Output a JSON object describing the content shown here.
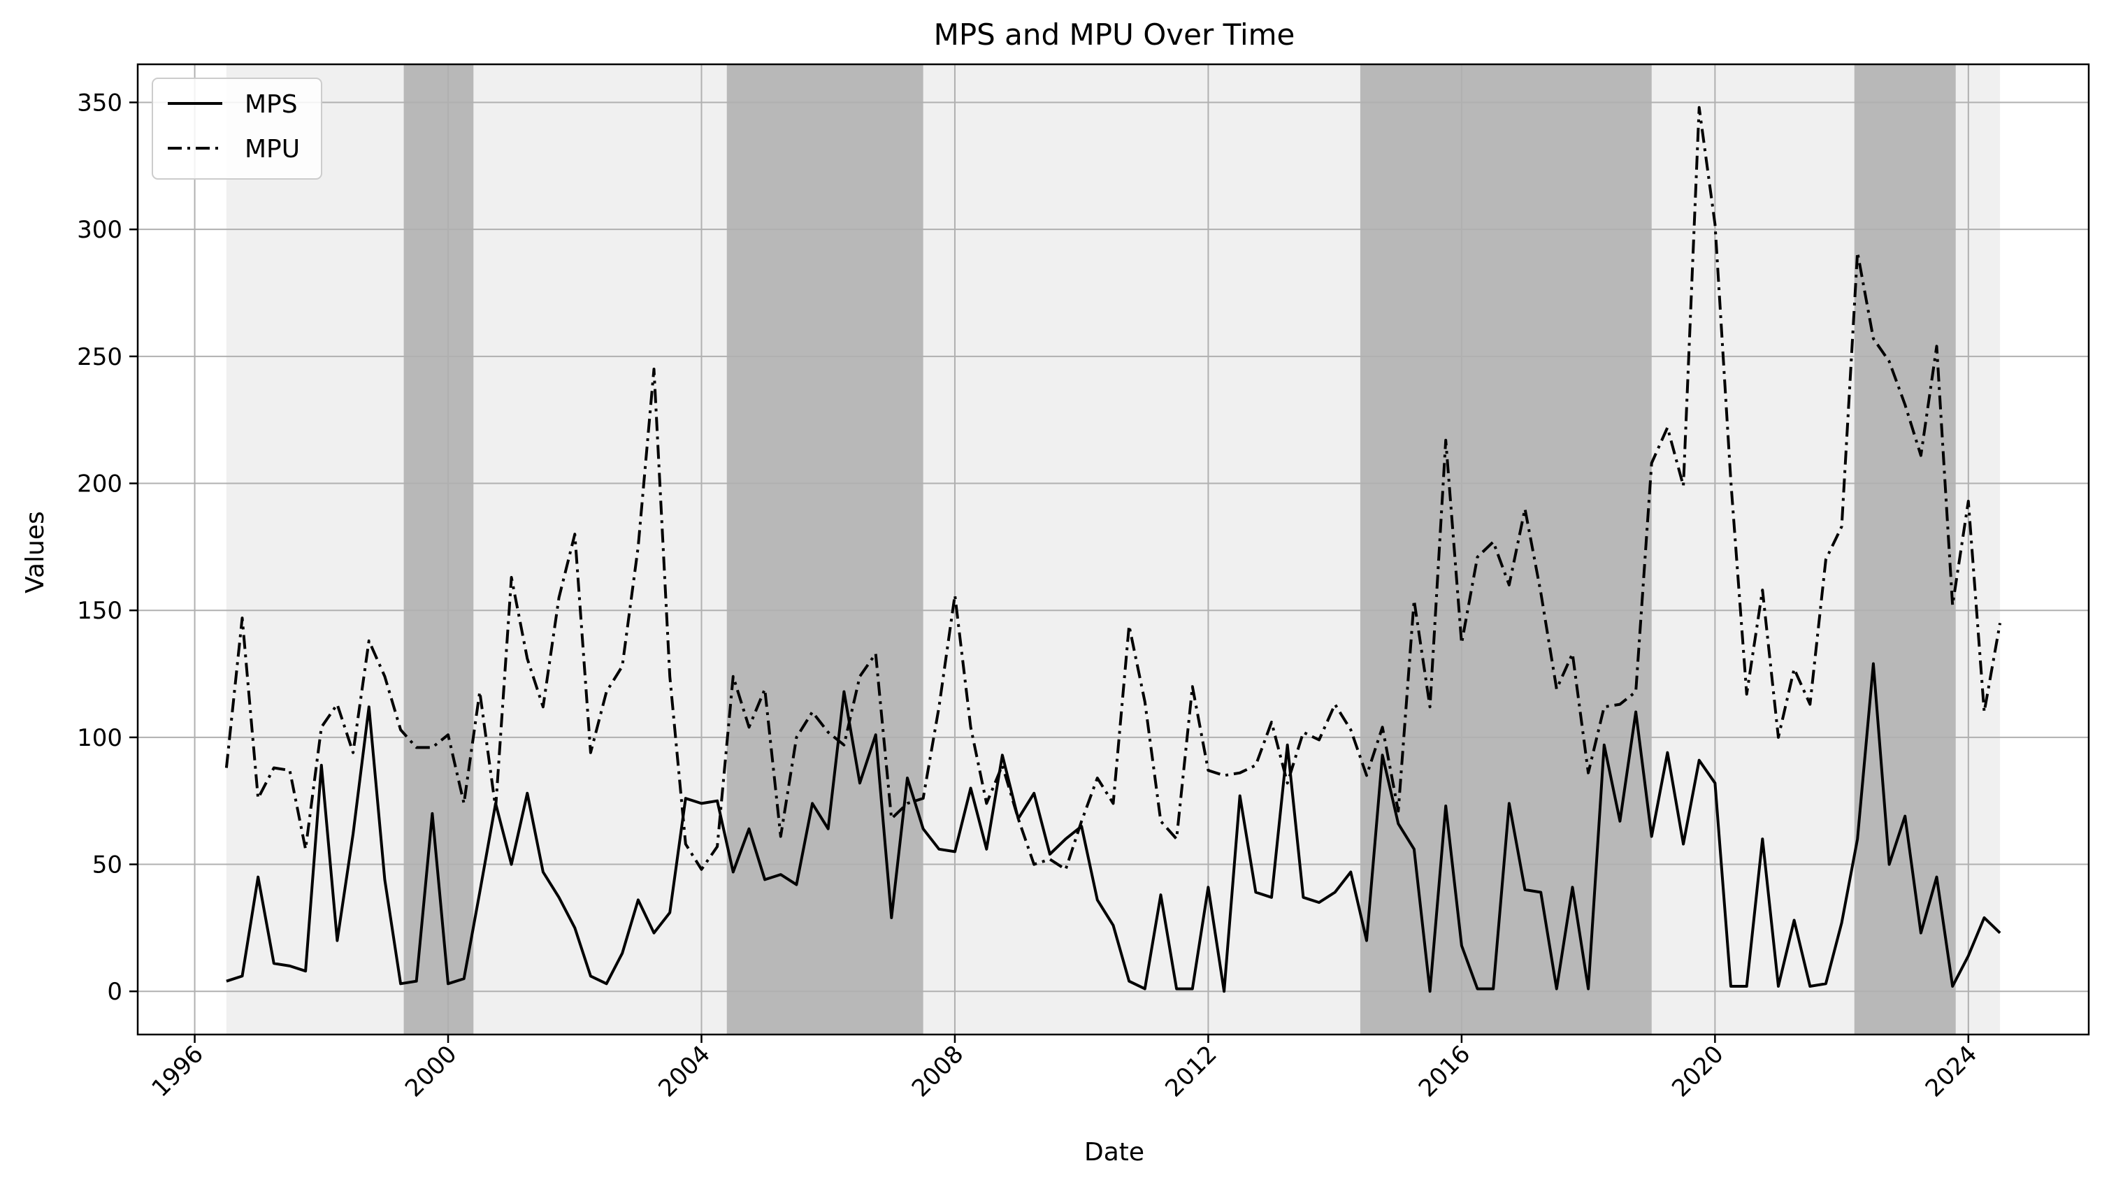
{
  "chart_data": {
    "type": "line",
    "title": "MPS and MPU Over Time",
    "xlabel": "Date",
    "ylabel": "Values",
    "xlim": [
      1995.1,
      2025.9
    ],
    "ylim": [
      -17,
      365
    ],
    "grid": true,
    "legend_position": "top-left",
    "x_ticks": [
      1996,
      2000,
      2004,
      2008,
      2012,
      2016,
      2020,
      2024
    ],
    "y_ticks": [
      0,
      50,
      100,
      150,
      200,
      250,
      300,
      350
    ],
    "background_band": [
      1996.5,
      2024.5
    ],
    "shaded_regions": [
      [
        1999.3,
        2000.4
      ],
      [
        2004.4,
        2007.5
      ],
      [
        2014.4,
        2019.0
      ],
      [
        2022.2,
        2023.8
      ]
    ],
    "colors": {
      "line": "#000000",
      "band_light": "#f0f0f0",
      "band_dark": "#b8b8b8",
      "grid": "#b0b0b0"
    },
    "series": [
      {
        "name": "MPS",
        "style": "solid",
        "points": [
          [
            1996.5,
            4
          ],
          [
            1996.75,
            6
          ],
          [
            1997.0,
            45
          ],
          [
            1997.25,
            11
          ],
          [
            1997.5,
            10
          ],
          [
            1997.75,
            8
          ],
          [
            1998.0,
            89
          ],
          [
            1998.25,
            20
          ],
          [
            1998.5,
            62
          ],
          [
            1998.75,
            112
          ],
          [
            1999.0,
            44
          ],
          [
            1999.25,
            3
          ],
          [
            1999.5,
            4
          ],
          [
            1999.75,
            70
          ],
          [
            2000.0,
            3
          ],
          [
            2000.25,
            5
          ],
          [
            2000.5,
            39
          ],
          [
            2000.75,
            74
          ],
          [
            2001.0,
            50
          ],
          [
            2001.25,
            78
          ],
          [
            2001.5,
            47
          ],
          [
            2001.75,
            37
          ],
          [
            2002.0,
            25
          ],
          [
            2002.25,
            6
          ],
          [
            2002.5,
            3
          ],
          [
            2002.75,
            15
          ],
          [
            2003.0,
            36
          ],
          [
            2003.25,
            23
          ],
          [
            2003.5,
            31
          ],
          [
            2003.75,
            76
          ],
          [
            2004.0,
            74
          ],
          [
            2004.25,
            75
          ],
          [
            2004.5,
            47
          ],
          [
            2004.75,
            64
          ],
          [
            2005.0,
            44
          ],
          [
            2005.25,
            46
          ],
          [
            2005.5,
            42
          ],
          [
            2005.75,
            74
          ],
          [
            2006.0,
            64
          ],
          [
            2006.25,
            118
          ],
          [
            2006.5,
            82
          ],
          [
            2006.75,
            101
          ],
          [
            2007.0,
            29
          ],
          [
            2007.25,
            84
          ],
          [
            2007.5,
            64
          ],
          [
            2007.75,
            56
          ],
          [
            2008.0,
            55
          ],
          [
            2008.25,
            80
          ],
          [
            2008.5,
            56
          ],
          [
            2008.75,
            93
          ],
          [
            2009.0,
            68
          ],
          [
            2009.25,
            78
          ],
          [
            2009.5,
            54
          ],
          [
            2009.75,
            60
          ],
          [
            2010.0,
            65
          ],
          [
            2010.25,
            36
          ],
          [
            2010.5,
            26
          ],
          [
            2010.75,
            4
          ],
          [
            2011.0,
            1
          ],
          [
            2011.25,
            38
          ],
          [
            2011.5,
            1
          ],
          [
            2011.75,
            1
          ],
          [
            2012.0,
            41
          ],
          [
            2012.25,
            0
          ],
          [
            2012.5,
            77
          ],
          [
            2012.75,
            39
          ],
          [
            2013.0,
            37
          ],
          [
            2013.25,
            97
          ],
          [
            2013.5,
            37
          ],
          [
            2013.75,
            35
          ],
          [
            2014.0,
            39
          ],
          [
            2014.25,
            47
          ],
          [
            2014.5,
            20
          ],
          [
            2014.75,
            93
          ],
          [
            2015.0,
            66
          ],
          [
            2015.25,
            56
          ],
          [
            2015.5,
            0
          ],
          [
            2015.75,
            73
          ],
          [
            2016.0,
            18
          ],
          [
            2016.25,
            1
          ],
          [
            2016.5,
            1
          ],
          [
            2016.75,
            74
          ],
          [
            2017.0,
            40
          ],
          [
            2017.25,
            39
          ],
          [
            2017.5,
            1
          ],
          [
            2017.75,
            41
          ],
          [
            2018.0,
            1
          ],
          [
            2018.25,
            97
          ],
          [
            2018.5,
            67
          ],
          [
            2018.75,
            110
          ],
          [
            2019.0,
            61
          ],
          [
            2019.25,
            94
          ],
          [
            2019.5,
            58
          ],
          [
            2019.75,
            91
          ],
          [
            2020.0,
            82
          ],
          [
            2020.25,
            2
          ],
          [
            2020.5,
            2
          ],
          [
            2020.75,
            60
          ],
          [
            2021.0,
            2
          ],
          [
            2021.25,
            28
          ],
          [
            2021.5,
            2
          ],
          [
            2021.75,
            3
          ],
          [
            2022.0,
            27
          ],
          [
            2022.25,
            60
          ],
          [
            2022.5,
            129
          ],
          [
            2022.75,
            50
          ],
          [
            2023.0,
            69
          ],
          [
            2023.25,
            23
          ],
          [
            2023.5,
            45
          ],
          [
            2023.75,
            2
          ],
          [
            2024.0,
            14
          ],
          [
            2024.25,
            29
          ],
          [
            2024.5,
            23
          ]
        ]
      },
      {
        "name": "MPU",
        "style": "dashdot",
        "points": [
          [
            1996.5,
            88
          ],
          [
            1996.75,
            147
          ],
          [
            1997.0,
            76
          ],
          [
            1997.25,
            88
          ],
          [
            1997.5,
            87
          ],
          [
            1997.75,
            56
          ],
          [
            1998.0,
            104
          ],
          [
            1998.25,
            113
          ],
          [
            1998.5,
            94
          ],
          [
            1998.75,
            138
          ],
          [
            1999.0,
            124
          ],
          [
            1999.25,
            103
          ],
          [
            1999.5,
            96
          ],
          [
            1999.75,
            96
          ],
          [
            2000.0,
            101
          ],
          [
            2000.25,
            74
          ],
          [
            2000.5,
            118
          ],
          [
            2000.75,
            72
          ],
          [
            2001.0,
            163
          ],
          [
            2001.25,
            131
          ],
          [
            2001.5,
            112
          ],
          [
            2001.75,
            155
          ],
          [
            2002.0,
            180
          ],
          [
            2002.25,
            94
          ],
          [
            2002.5,
            118
          ],
          [
            2002.75,
            128
          ],
          [
            2003.0,
            175
          ],
          [
            2003.25,
            245
          ],
          [
            2003.5,
            124
          ],
          [
            2003.75,
            58
          ],
          [
            2004.0,
            48
          ],
          [
            2004.25,
            57
          ],
          [
            2004.5,
            124
          ],
          [
            2004.75,
            104
          ],
          [
            2005.0,
            119
          ],
          [
            2005.25,
            61
          ],
          [
            2005.5,
            100
          ],
          [
            2005.75,
            110
          ],
          [
            2006.0,
            102
          ],
          [
            2006.25,
            97
          ],
          [
            2006.5,
            124
          ],
          [
            2006.75,
            133
          ],
          [
            2007.0,
            68
          ],
          [
            2007.25,
            74
          ],
          [
            2007.5,
            76
          ],
          [
            2007.75,
            112
          ],
          [
            2008.0,
            156
          ],
          [
            2008.25,
            104
          ],
          [
            2008.5,
            74
          ],
          [
            2008.75,
            89
          ],
          [
            2009.0,
            68
          ],
          [
            2009.25,
            50
          ],
          [
            2009.5,
            52
          ],
          [
            2009.75,
            48
          ],
          [
            2010.0,
            67
          ],
          [
            2010.25,
            84
          ],
          [
            2010.5,
            74
          ],
          [
            2010.75,
            144
          ],
          [
            2011.0,
            114
          ],
          [
            2011.25,
            67
          ],
          [
            2011.5,
            60
          ],
          [
            2011.75,
            120
          ],
          [
            2012.0,
            87
          ],
          [
            2012.25,
            85
          ],
          [
            2012.5,
            86
          ],
          [
            2012.75,
            89
          ],
          [
            2013.0,
            106
          ],
          [
            2013.25,
            82
          ],
          [
            2013.5,
            102
          ],
          [
            2013.75,
            99
          ],
          [
            2014.0,
            113
          ],
          [
            2014.25,
            103
          ],
          [
            2014.5,
            85
          ],
          [
            2014.75,
            104
          ],
          [
            2015.0,
            71
          ],
          [
            2015.25,
            154
          ],
          [
            2015.5,
            112
          ],
          [
            2015.75,
            217
          ],
          [
            2016.0,
            137
          ],
          [
            2016.25,
            171
          ],
          [
            2016.5,
            177
          ],
          [
            2016.75,
            160
          ],
          [
            2017.0,
            190
          ],
          [
            2017.25,
            157
          ],
          [
            2017.5,
            119
          ],
          [
            2017.75,
            133
          ],
          [
            2018.0,
            86
          ],
          [
            2018.25,
            112
          ],
          [
            2018.5,
            113
          ],
          [
            2018.75,
            118
          ],
          [
            2019.0,
            208
          ],
          [
            2019.25,
            222
          ],
          [
            2019.5,
            199
          ],
          [
            2019.75,
            348
          ],
          [
            2020.0,
            302
          ],
          [
            2020.25,
            201
          ],
          [
            2020.5,
            117
          ],
          [
            2020.75,
            158
          ],
          [
            2021.0,
            100
          ],
          [
            2021.25,
            127
          ],
          [
            2021.5,
            113
          ],
          [
            2021.75,
            170
          ],
          [
            2022.0,
            183
          ],
          [
            2022.25,
            291
          ],
          [
            2022.5,
            257
          ],
          [
            2022.75,
            248
          ],
          [
            2023.0,
            231
          ],
          [
            2023.25,
            211
          ],
          [
            2023.5,
            254
          ],
          [
            2023.75,
            152
          ],
          [
            2024.0,
            193
          ],
          [
            2024.25,
            110
          ],
          [
            2024.5,
            145
          ]
        ]
      }
    ]
  }
}
